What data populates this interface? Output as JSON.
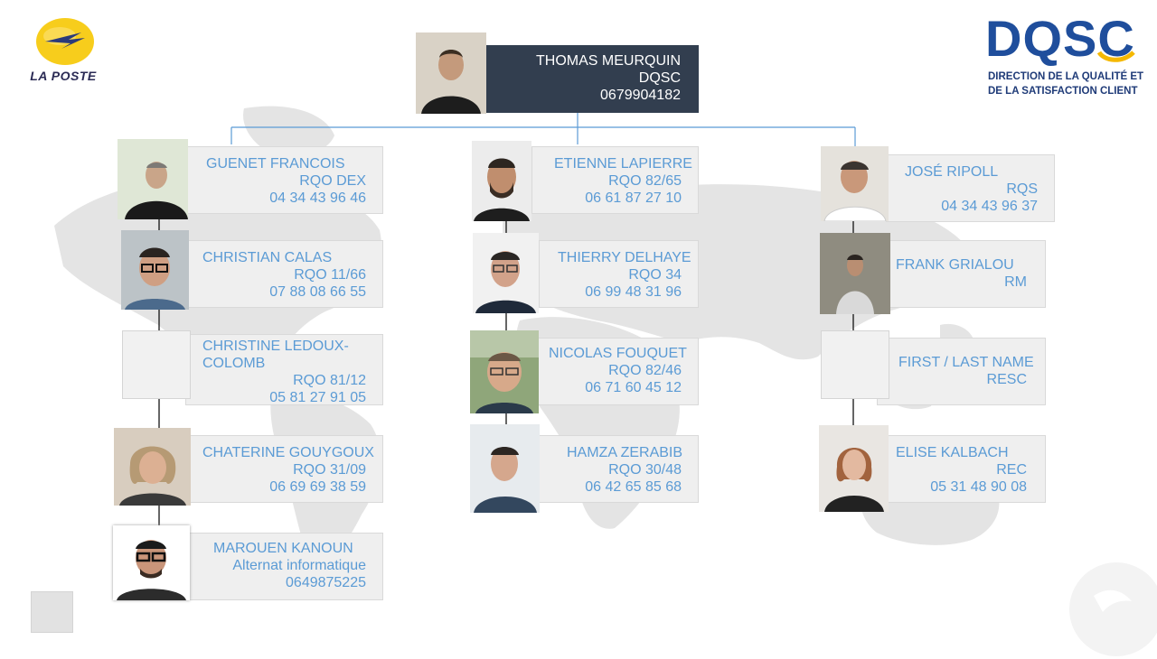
{
  "logos": {
    "la_poste": "LA POSTE",
    "dqsc": "DQSC",
    "dqsc_line1": "DIRECTION DE LA QUALITÉ ET",
    "dqsc_line2": "DE LA SATISFACTION CLIENT"
  },
  "root": {
    "name": "THOMAS  MEURQUIN",
    "role": "DQSC",
    "phone": "0679904182"
  },
  "columns": [
    {
      "members": [
        {
          "name": "GUENET FRANCOIS",
          "role": "RQO DEX",
          "phone": "04 34 43 96 46"
        },
        {
          "name": "CHRISTIAN CALAS",
          "role": "RQO 11/66",
          "phone": "07 88 08 66 55"
        },
        {
          "name": "CHRISTINE LEDOUX-COLOMB",
          "role": "RQO 81/12",
          "phone": "05 81 27 91 05"
        },
        {
          "name": "CHATERINE GOUYGOUX",
          "role": "RQO 31/09",
          "phone": "06 69 69 38 59"
        },
        {
          "name": "MAROUEN KANOUN",
          "role": "Alternat informatique",
          "phone": "0649875225"
        }
      ]
    },
    {
      "members": [
        {
          "name": "ETIENNE LAPIERRE",
          "role": "RQO 82/65",
          "phone": "06 61 87 27 10"
        },
        {
          "name": "THIERRY DELHAYE",
          "role": "RQO 34",
          "phone": "06 99 48 31 96"
        },
        {
          "name": "NICOLAS FOUQUET",
          "role": "RQO 82/46",
          "phone": "06 71 60 45 12"
        },
        {
          "name": "HAMZA ZERABIB",
          "role": "RQO 30/48",
          "phone": "06 42 65 85 68"
        }
      ]
    },
    {
      "members": [
        {
          "name": "JOSÉ RIPOLL",
          "role": "RQS",
          "phone": "04 34 43 96 37"
        },
        {
          "name": "FRANK GRIALOU",
          "role": "RM",
          "phone": ""
        },
        {
          "name": "FIRST / LAST NAME",
          "role": "RESC",
          "phone": ""
        },
        {
          "name": "ELISE KALBACH",
          "role": "REC",
          "phone": "05 31 48 90 08"
        }
      ]
    }
  ],
  "colors": {
    "root_bg": "#323e4f",
    "card_bg": "#efefef",
    "text_blue": "#5b9bd5",
    "connector": "#5b9bd5",
    "la_poste_yellow": "#f7cd1c",
    "dqsc_blue": "#1f4e9c",
    "dqsc_accent": "#f5b800"
  }
}
